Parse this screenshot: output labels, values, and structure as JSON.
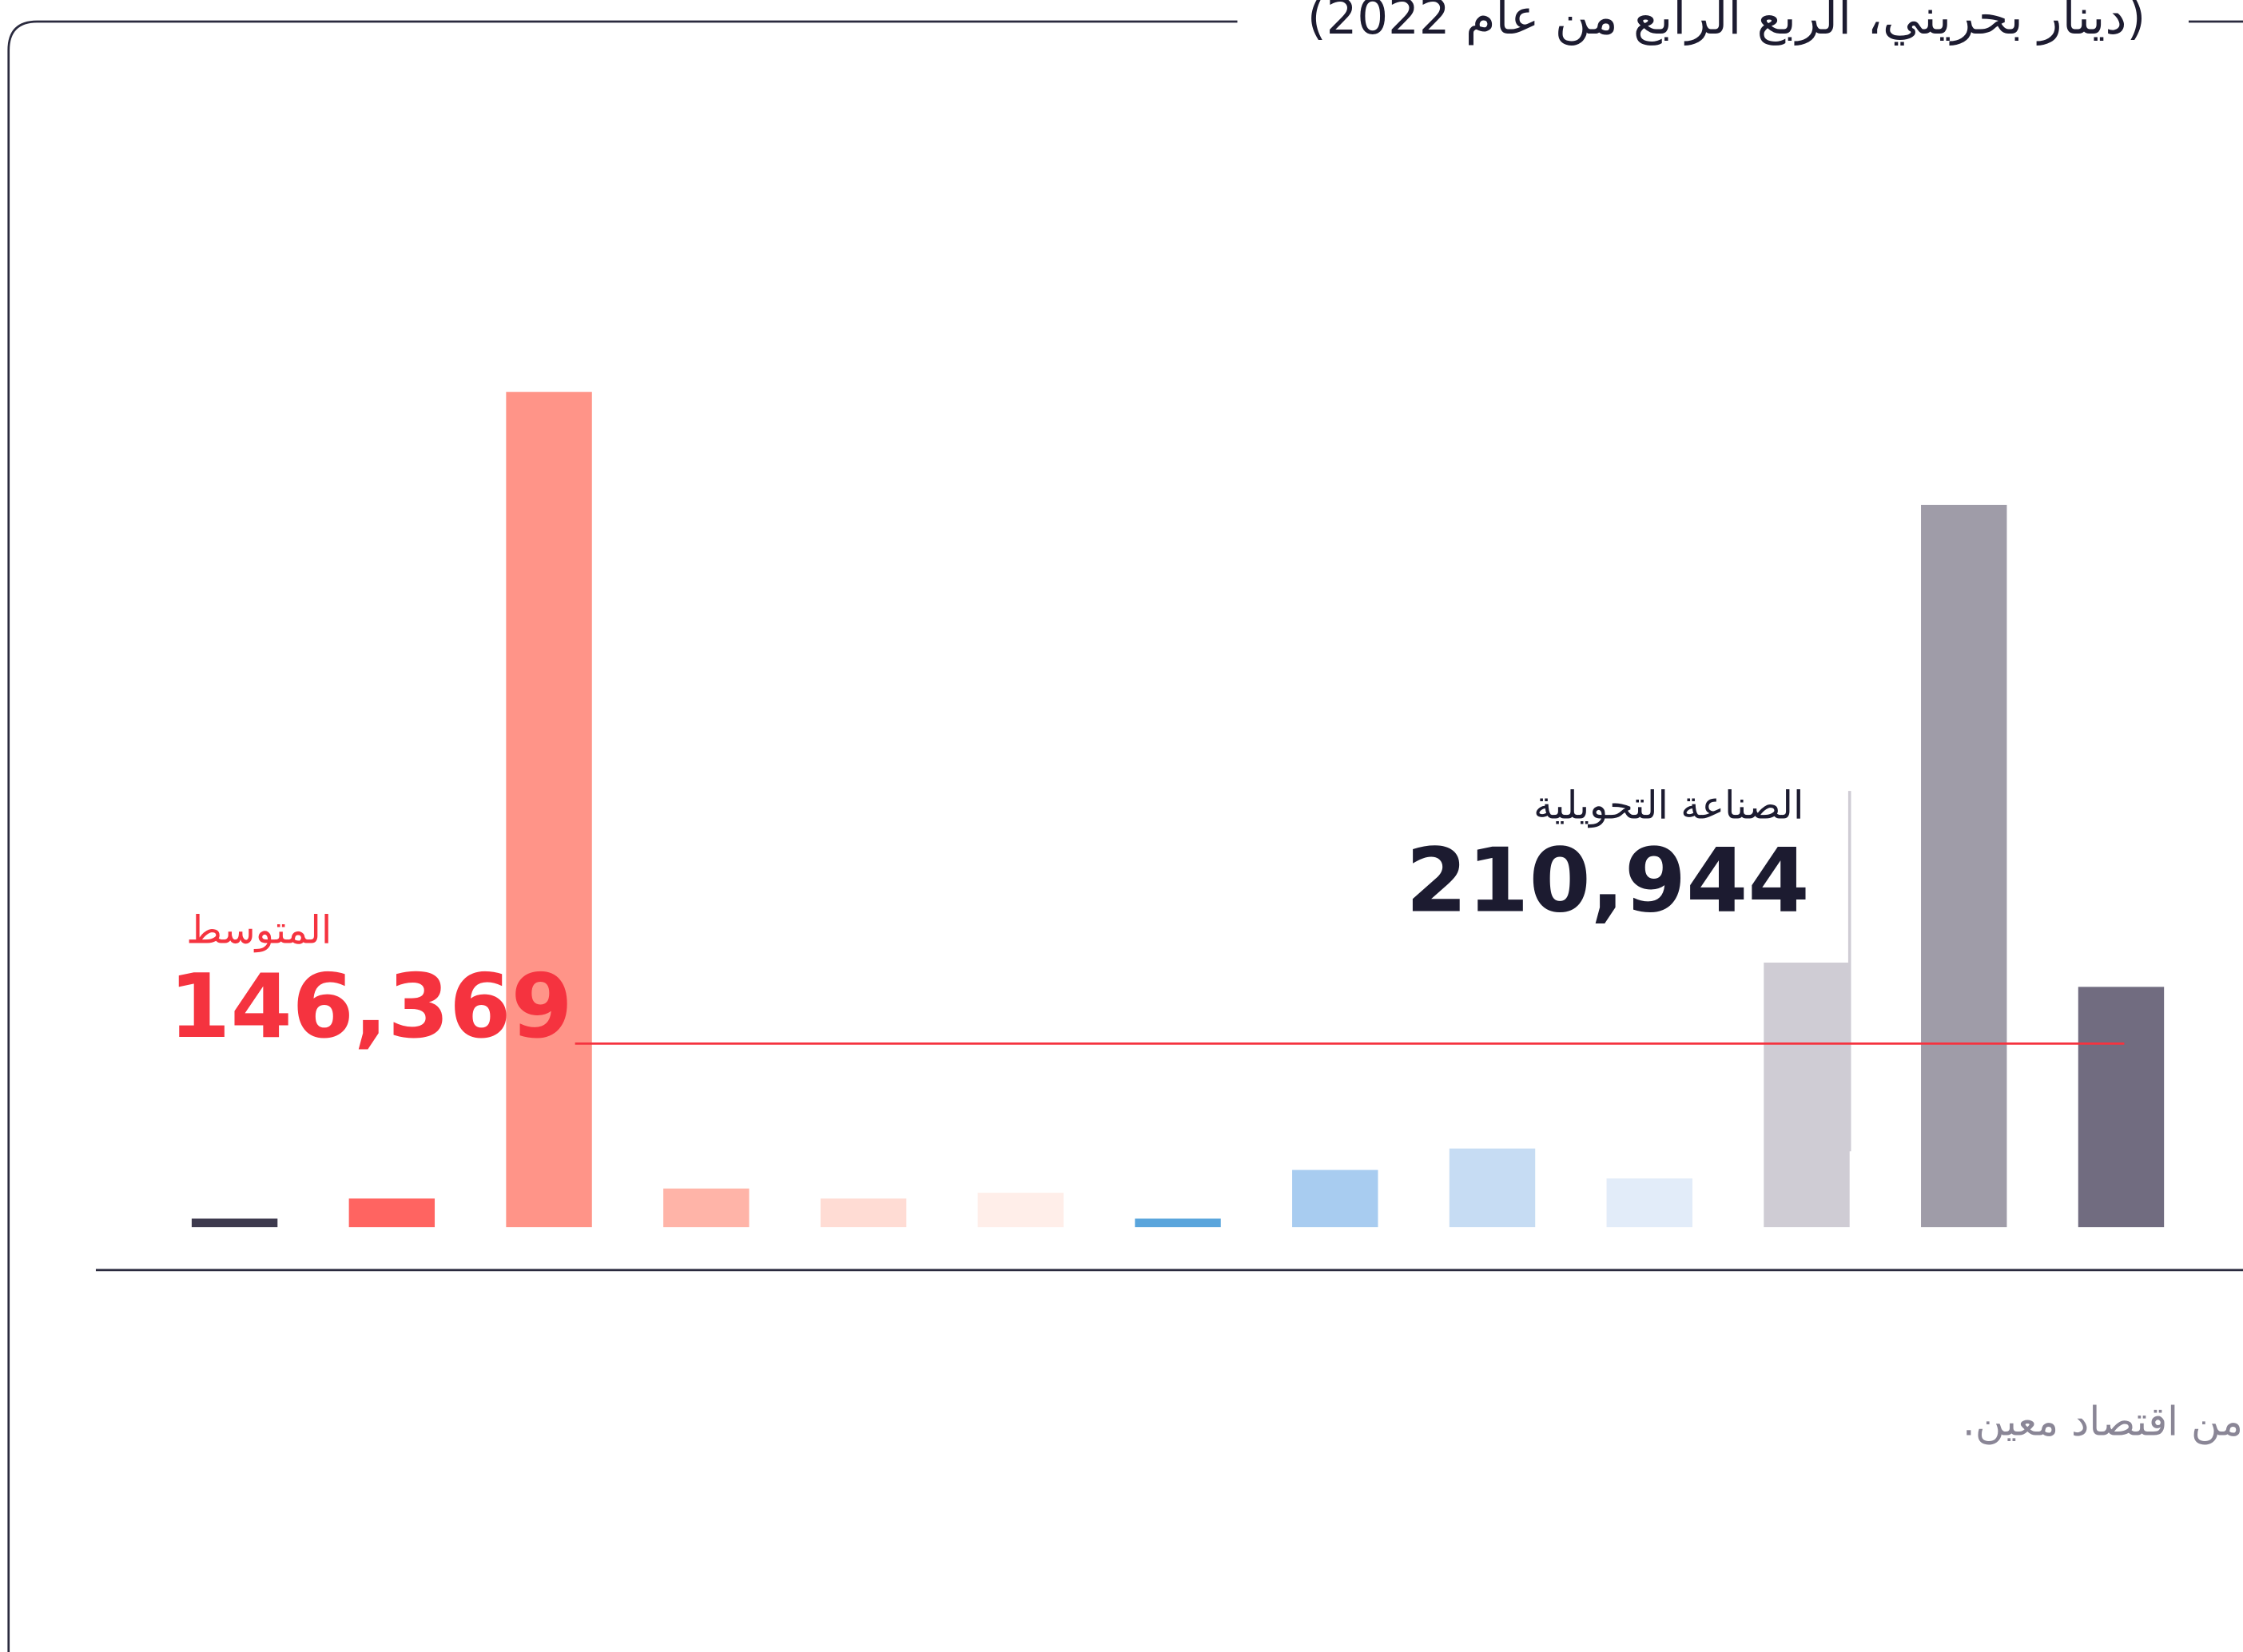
{
  "chart_data": {
    "type": "bar",
    "title": "(دينار بحريني، الربع الرابع من عام 2022)",
    "footnote": "من اقتصاد معين.",
    "categories": [
      null,
      null,
      null,
      null,
      null,
      null,
      null,
      null,
      null,
      null,
      "الصناعة التحويلية",
      null,
      null
    ],
    "values": [
      6800,
      22800,
      666000,
      30800,
      22800,
      27400,
      6800,
      45600,
      62700,
      38800,
      210944,
      576000,
      191600
    ],
    "value_labels": [
      null,
      null,
      null,
      null,
      null,
      null,
      null,
      null,
      null,
      null,
      "210,944",
      null,
      null
    ],
    "colors": [
      "#3d3a4e",
      "#ff6461",
      "#ff9488",
      "#ffb4a8",
      "#ffdcd4",
      "#ffeee9",
      "#5aa5dc",
      "#a8ccf0",
      "#c6dcf3",
      "#e2ecf9",
      "#cfccd4",
      "#9f9ca8",
      "#716c80"
    ],
    "average": {
      "label": "المتوسط",
      "value": 146369,
      "value_label": "146,369",
      "color": "#f5333f"
    }
  }
}
